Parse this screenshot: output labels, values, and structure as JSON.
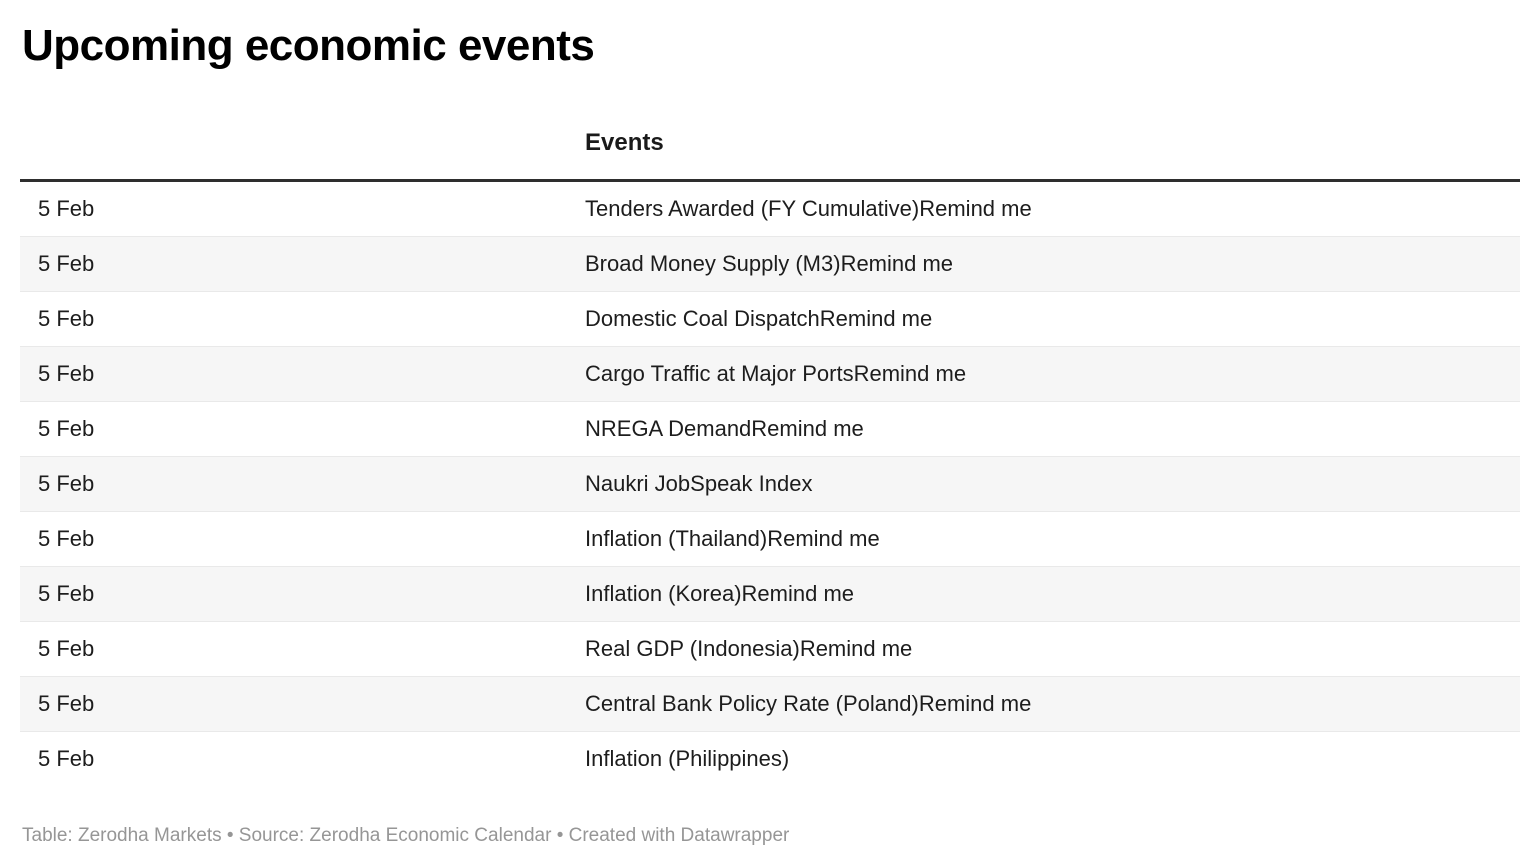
{
  "header": {
    "title": "Upcoming economic events"
  },
  "chart_data": {
    "type": "table",
    "title": "Upcoming economic events",
    "columns": [
      "",
      "Events"
    ],
    "rows": [
      {
        "date": "5 Feb",
        "event": "Tenders Awarded (FY Cumulative)",
        "remind": "Remind me"
      },
      {
        "date": "5 Feb",
        "event": "Broad Money Supply (M3)",
        "remind": "Remind me"
      },
      {
        "date": "5 Feb",
        "event": "Domestic Coal Dispatch",
        "remind": "Remind me"
      },
      {
        "date": "5 Feb",
        "event": "Cargo Traffic at Major Ports",
        "remind": "Remind me"
      },
      {
        "date": "5 Feb",
        "event": "NREGA Demand",
        "remind": "Remind me"
      },
      {
        "date": "5 Feb",
        "event": "Naukri JobSpeak Index",
        "remind": ""
      },
      {
        "date": "5 Feb",
        "event": "Inflation (Thailand)",
        "remind": "Remind me"
      },
      {
        "date": "5 Feb",
        "event": "Inflation (Korea)",
        "remind": "Remind me"
      },
      {
        "date": "5 Feb",
        "event": "Real GDP (Indonesia)",
        "remind": "Remind me"
      },
      {
        "date": "5 Feb",
        "event": "Central Bank Policy Rate (Poland)",
        "remind": "Remind me"
      },
      {
        "date": "5 Feb",
        "event": "Inflation (Philippines)",
        "remind": ""
      }
    ],
    "layout": {
      "striped": true,
      "alt_row_color": "#f6f6f6",
      "divider_color": "#e9e9e9",
      "header_rule_color": "#2e2e2e",
      "grid": false
    }
  },
  "footer": {
    "credit_line": "Table: Zerodha Markets • Source: Zerodha Economic Calendar • Created with Datawrapper"
  }
}
